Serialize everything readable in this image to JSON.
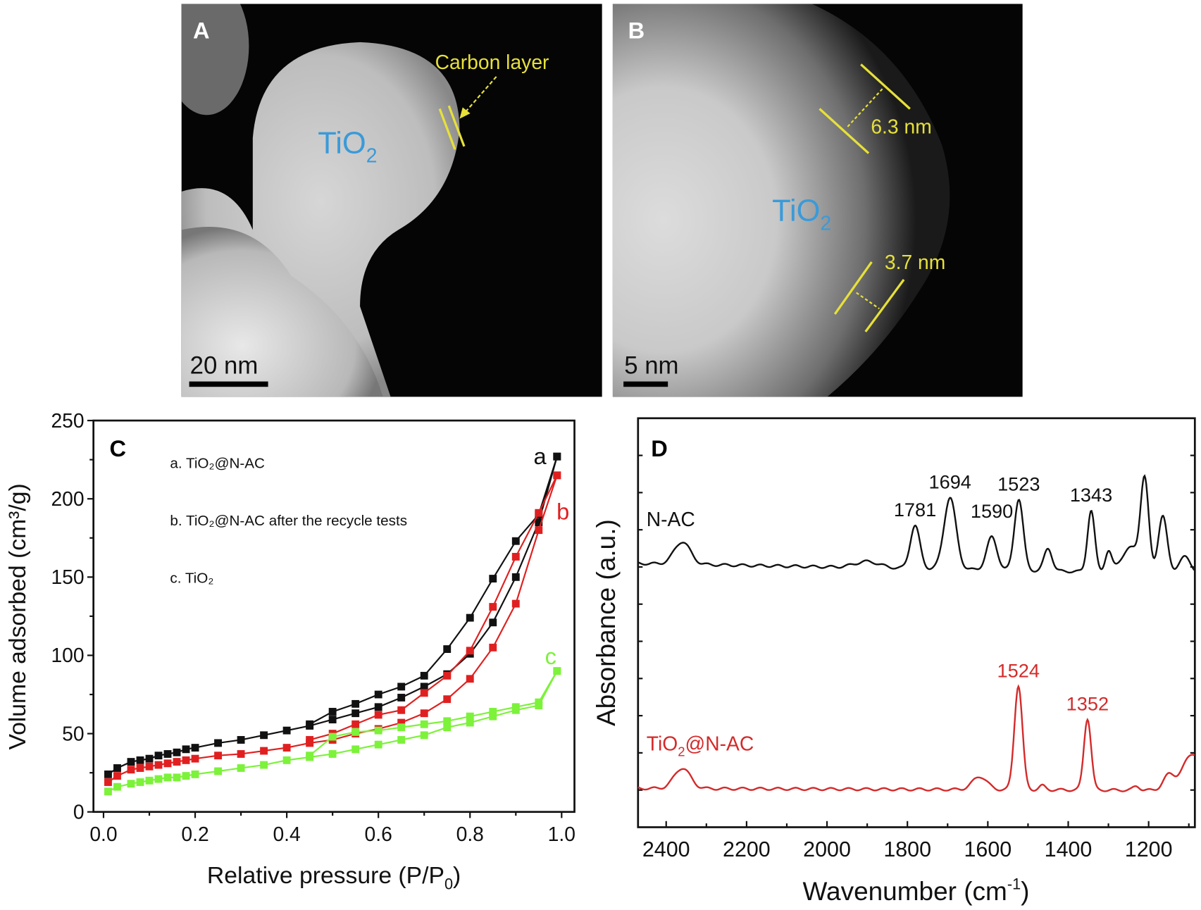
{
  "panel_a": {
    "label": "A",
    "annotation": "Carbon layer",
    "particle": "TiO",
    "particle_sub": "2",
    "scale_bar": "20 nm"
  },
  "panel_b": {
    "label": "B",
    "thickness_1": "6.3 nm",
    "thickness_2": "3.7 nm",
    "particle": "TiO",
    "particle_sub": "2",
    "scale_bar": "5 nm"
  },
  "colors": {
    "black": "#111111",
    "red": "#e02020",
    "green": "#7cf23a",
    "red_spectrum": "#d42a2a",
    "annot_yellow": "#e6e03a",
    "tio2_blue": "#3a9ad9"
  },
  "chart_data": [
    {
      "panel": "C",
      "type": "scatter",
      "xlabel": "Relative pressure (P/P",
      "xlabel_sub": "0",
      "xlabel_end": ")",
      "ylabel": "Volume adsorbed (cm³/g)",
      "xlim": [
        -0.022,
        1.028
      ],
      "ylim": [
        0,
        250
      ],
      "xticks": [
        "0.0",
        "0.2",
        "0.4",
        "0.6",
        "0.8",
        "1.0"
      ],
      "xtick_values": [
        0,
        0.2,
        0.4,
        0.6,
        0.8,
        1.0
      ],
      "yticks": [
        "0",
        "50",
        "100",
        "150",
        "200",
        "250"
      ],
      "ytick_values": [
        0,
        50,
        100,
        150,
        200,
        250
      ],
      "legend": [
        "a. TiO₂@N-AC",
        "b. TiO₂@N-AC after the recycle tests",
        "c. TiO₂"
      ],
      "legend_placement": "top-left",
      "series": [
        {
          "name": "a",
          "color": "#111111",
          "adsorption": {
            "x": [
              0.01,
              0.03,
              0.06,
              0.08,
              0.1,
              0.12,
              0.14,
              0.16,
              0.18,
              0.2,
              0.25,
              0.3,
              0.35,
              0.4,
              0.45,
              0.5,
              0.55,
              0.6,
              0.65,
              0.7,
              0.75,
              0.8,
              0.85,
              0.9,
              0.95,
              0.99
            ],
            "y": [
              24,
              28,
              32,
              33,
              34,
              36,
              37,
              38,
              40,
              41,
              44,
              46,
              49,
              52,
              55,
              59,
              63,
              67,
              73,
              80,
              88,
              101,
              121,
              150,
              185,
              227
            ]
          },
          "desorption": {
            "x": [
              0.99,
              0.95,
              0.9,
              0.85,
              0.8,
              0.75,
              0.7,
              0.65,
              0.6,
              0.55,
              0.5,
              0.45
            ],
            "y": [
              227,
              190,
              173,
              149,
              124,
              104,
              87,
              80,
              75,
              69,
              64,
              56
            ]
          }
        },
        {
          "name": "b",
          "color": "#e02020",
          "adsorption": {
            "x": [
              0.01,
              0.03,
              0.06,
              0.08,
              0.1,
              0.12,
              0.14,
              0.16,
              0.18,
              0.2,
              0.25,
              0.3,
              0.35,
              0.4,
              0.45,
              0.5,
              0.55,
              0.6,
              0.65,
              0.7,
              0.75,
              0.8,
              0.85,
              0.9,
              0.95,
              0.99
            ],
            "y": [
              19,
              23,
              27,
              28,
              29,
              30,
              31,
              32,
              33,
              34,
              36,
              37,
              39,
              41,
              44,
              46,
              50,
              53,
              57,
              63,
              72,
              85,
              105,
              133,
              180,
              215
            ]
          },
          "desorption": {
            "x": [
              0.99,
              0.95,
              0.9,
              0.85,
              0.8,
              0.75,
              0.7,
              0.65,
              0.6,
              0.55,
              0.5,
              0.45
            ],
            "y": [
              215,
              191,
              163,
              131,
              103,
              87,
              76,
              65,
              62,
              56,
              50,
              46
            ]
          }
        },
        {
          "name": "c",
          "color": "#7cf23a",
          "adsorption": {
            "x": [
              0.01,
              0.03,
              0.06,
              0.08,
              0.1,
              0.12,
              0.14,
              0.16,
              0.18,
              0.2,
              0.25,
              0.3,
              0.35,
              0.4,
              0.45,
              0.5,
              0.55,
              0.6,
              0.65,
              0.7,
              0.75,
              0.8,
              0.85,
              0.9,
              0.95,
              0.99
            ],
            "y": [
              13,
              16,
              18,
              19,
              20,
              21,
              22,
              22,
              23,
              24,
              26,
              28,
              30,
              33,
              35,
              37,
              40,
              43,
              46,
              49,
              54,
              57,
              61,
              65,
              68,
              90
            ]
          },
          "desorption": {
            "x": [
              0.99,
              0.95,
              0.9,
              0.85,
              0.8,
              0.75,
              0.7,
              0.65,
              0.6,
              0.55,
              0.5,
              0.45
            ],
            "y": [
              90,
              70,
              67,
              64,
              61,
              58,
              56,
              54,
              52,
              51,
              48,
              36
            ]
          }
        }
      ]
    },
    {
      "panel": "D",
      "type": "line",
      "xlabel": "Wavenumber (cm",
      "xlabel_sup": "-1",
      "xlabel_end": ")",
      "ylabel": "Absorbance (a.u.)",
      "xlim": [
        2470,
        1085
      ],
      "ylim": [
        0,
        10
      ],
      "xticks": [
        "2400",
        "2200",
        "2000",
        "1800",
        "1600",
        "1400",
        "1200"
      ],
      "xtick_values": [
        2400,
        2200,
        2000,
        1800,
        1600,
        1400,
        1200
      ],
      "series": [
        {
          "name": "N-AC",
          "color": "#111111",
          "baseline": 6.45,
          "baseline_slope_end": 6.2,
          "peaks": [
            [
              2360,
              0.55,
              20
            ],
            [
              1900,
              0.15,
              30
            ],
            [
              1781,
              1.05,
              12
            ],
            [
              1694,
              1.75,
              15
            ],
            [
              1590,
              0.8,
              13
            ],
            [
              1523,
              1.75,
              11
            ],
            [
              1450,
              0.55,
              10
            ],
            [
              1343,
              1.5,
              9
            ],
            [
              1300,
              0.5,
              8
            ],
            [
              1245,
              0.6,
              22
            ],
            [
              1210,
              2.2,
              10
            ],
            [
              1165,
              1.4,
              11
            ],
            [
              1110,
              0.4,
              15
            ]
          ],
          "annotations": [
            "1781",
            "1694",
            "1590",
            "1523",
            "1343"
          ],
          "annotation_x": [
            1781,
            1694,
            1590,
            1523,
            1343
          ]
        },
        {
          "name": "TiO₂@N-AC",
          "label": "TiO",
          "label_sub": "2",
          "label_end": "@N-AC",
          "color": "#d42a2a",
          "baseline": 0.95,
          "baseline_slope_end": 0.9,
          "peaks": [
            [
              2360,
              0.5,
              20
            ],
            [
              1620,
              0.32,
              18
            ],
            [
              1524,
              2.55,
              10
            ],
            [
              1465,
              0.1,
              8
            ],
            [
              1352,
              1.75,
              9
            ],
            [
              1230,
              0.1,
              8
            ],
            [
              1150,
              0.35,
              14
            ],
            [
              1090,
              0.9,
              25
            ]
          ],
          "annotations": [
            "1524",
            "1352"
          ],
          "annotation_x": [
            1524,
            1352
          ]
        }
      ]
    }
  ]
}
